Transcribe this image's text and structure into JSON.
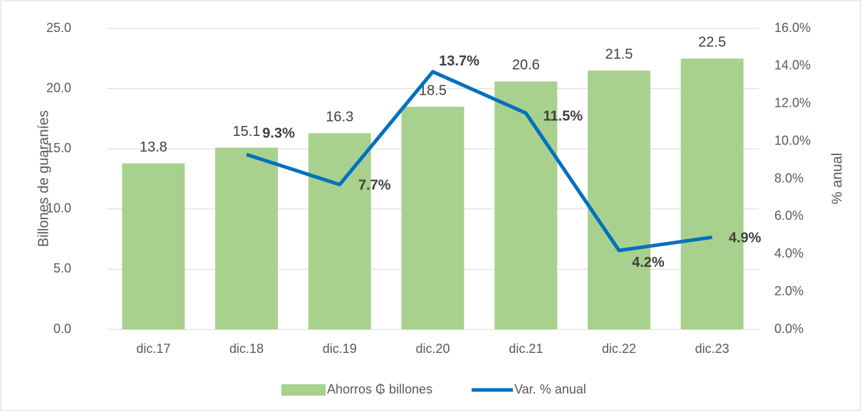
{
  "chart_data": {
    "type": "bar",
    "categories": [
      "dic.17",
      "dic.18",
      "dic.19",
      "dic.20",
      "dic.21",
      "dic.22",
      "dic.23"
    ],
    "series": [
      {
        "name": "Ahorros ₲ billones",
        "type": "bar",
        "color": "#a9d18e",
        "values": [
          13.8,
          15.1,
          16.3,
          18.5,
          20.6,
          21.5,
          22.5
        ]
      },
      {
        "name": "Var. % anual",
        "type": "line",
        "axis": "y2",
        "color": "#0070c0",
        "values": [
          null,
          9.3,
          7.7,
          13.7,
          11.5,
          4.2,
          4.9
        ],
        "value_labels": [
          null,
          "9.3%",
          "7.7%",
          "13.7%",
          "11.5%",
          "4.2%",
          "4.9%"
        ]
      }
    ],
    "ylabel": "Billones de guaraníes",
    "y2label": "% anual",
    "ylim": [
      0,
      25
    ],
    "yticks": [
      {
        "value": 0,
        "label": "0.0"
      },
      {
        "value": 5,
        "label": "5.0"
      },
      {
        "value": 10,
        "label": "10.0"
      },
      {
        "value": 15,
        "label": "15.0"
      },
      {
        "value": 20,
        "label": "20.0"
      },
      {
        "value": 25,
        "label": "25.0"
      }
    ],
    "y2lim": [
      0,
      16
    ],
    "y2ticks": [
      {
        "value": 0,
        "label": "0.0%"
      },
      {
        "value": 2,
        "label": "2.0%"
      },
      {
        "value": 4,
        "label": "4.0%"
      },
      {
        "value": 6,
        "label": "6.0%"
      },
      {
        "value": 8,
        "label": "8.0%"
      },
      {
        "value": 10,
        "label": "10.0%"
      },
      {
        "value": 12,
        "label": "12.0%"
      },
      {
        "value": 14,
        "label": "14.0%"
      },
      {
        "value": 16,
        "label": "16.0%"
      }
    ],
    "grid": true,
    "legend": "bottom"
  }
}
